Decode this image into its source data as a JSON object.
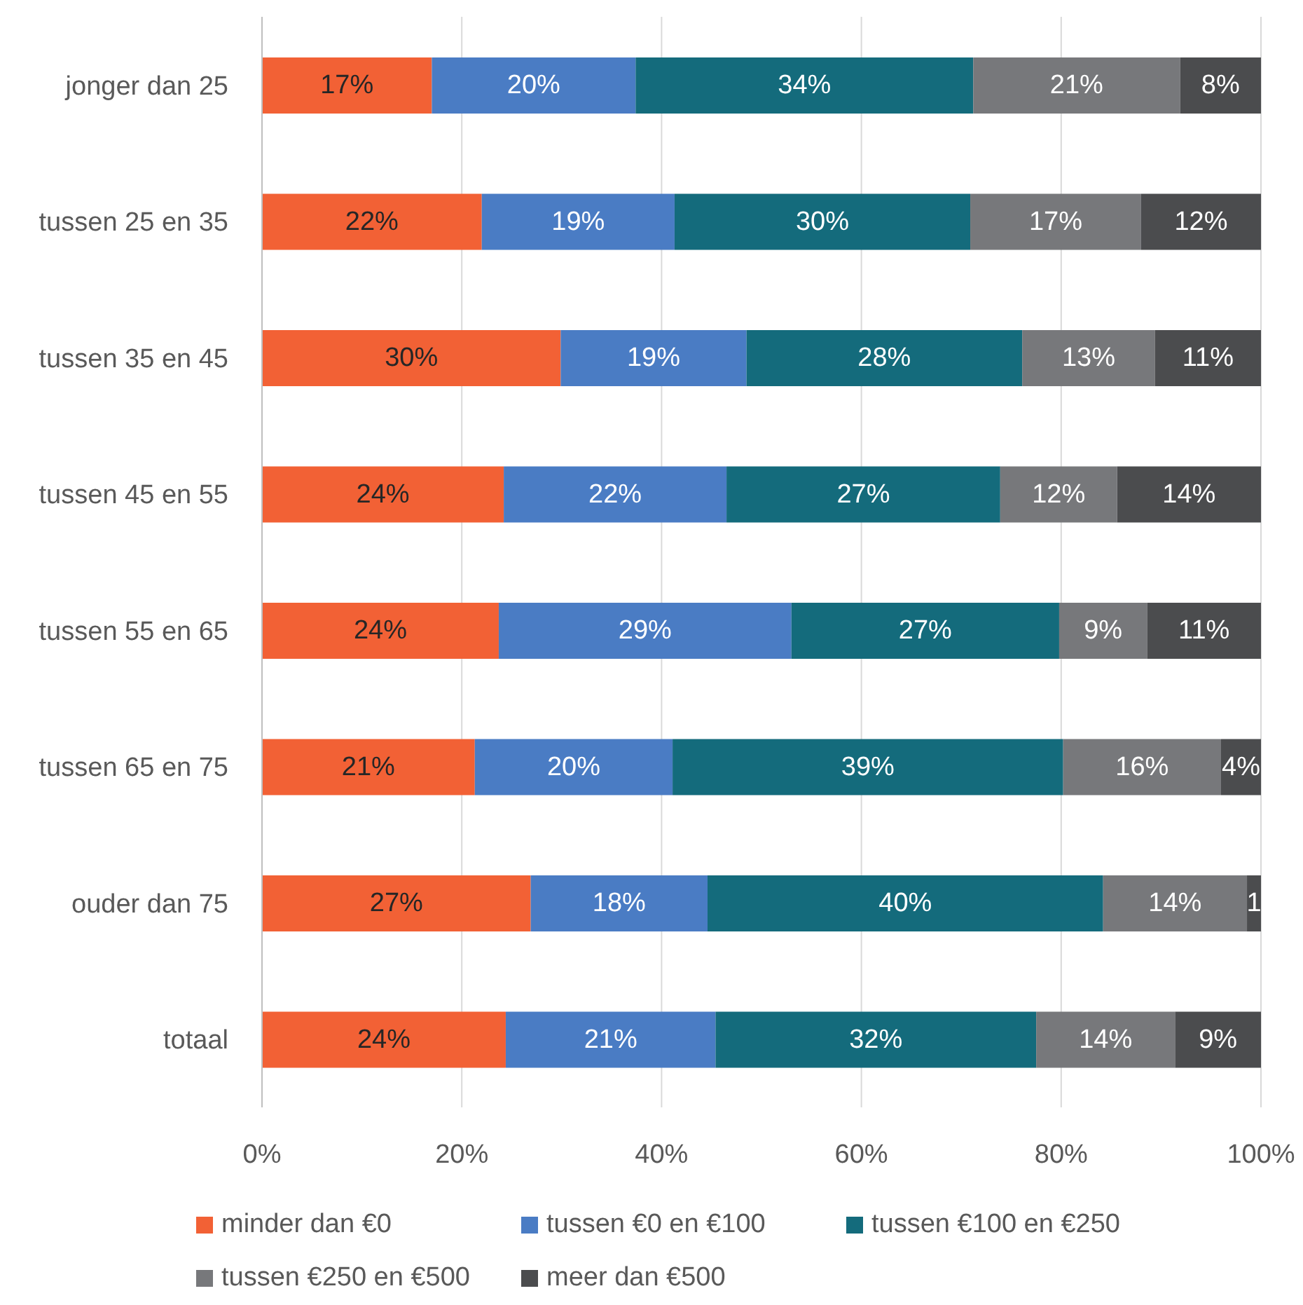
{
  "chart_data": {
    "type": "bar",
    "orientation": "horizontal",
    "stacked": true,
    "categories": [
      "jonger dan 25",
      "tussen 25 en 35",
      "tussen 35 en 45",
      "tussen 45 en 55",
      "tussen 55 en 65",
      "tussen 65 en 75",
      "ouder dan 75",
      "totaal"
    ],
    "series": [
      {
        "name": "minder dan €0",
        "color": "#f26135",
        "values": [
          17.0,
          22.0,
          29.9,
          24.2,
          23.7,
          21.3,
          26.9,
          24.4
        ],
        "value_labels": [
          "17%",
          "22%",
          "30%",
          "24%",
          "24%",
          "21%",
          "27%",
          "24%"
        ]
      },
      {
        "name": "tussen €0 en €100",
        "color": "#4a7cc4",
        "values": [
          20.4,
          19.3,
          18.6,
          22.3,
          29.3,
          19.8,
          17.7,
          21.0
        ],
        "value_labels": [
          "20%",
          "19%",
          "19%",
          "22%",
          "29%",
          "20%",
          "18%",
          "21%"
        ]
      },
      {
        "name": "tussen €100 en €250",
        "color": "#146b7c",
        "values": [
          33.8,
          29.6,
          27.6,
          27.4,
          26.8,
          39.1,
          39.6,
          32.1
        ],
        "value_labels": [
          "34%",
          "30%",
          "28%",
          "27%",
          "27%",
          "39%",
          "40%",
          "32%"
        ]
      },
      {
        "name": "tussen €250 en €500",
        "color": "#77787b",
        "values": [
          20.7,
          17.1,
          13.3,
          11.7,
          8.8,
          15.8,
          14.4,
          13.9
        ],
        "value_labels": [
          "21%",
          "17%",
          "13%",
          "12%",
          "9%",
          "16%",
          "14%",
          "14%"
        ]
      },
      {
        "name": "meer dan €500",
        "color": "#4b4c4e",
        "values": [
          8.1,
          12.0,
          10.6,
          14.4,
          11.4,
          4.0,
          1.4,
          8.6
        ],
        "value_labels": [
          "8%",
          "12%",
          "11%",
          "14%",
          "11%",
          "4%",
          "1",
          "9%"
        ]
      }
    ],
    "xlim": [
      0,
      100
    ],
    "xticks": [
      {
        "value": 0,
        "label": "0%"
      },
      {
        "value": 20,
        "label": "20%"
      },
      {
        "value": 40,
        "label": "40%"
      },
      {
        "value": 60,
        "label": "60%"
      },
      {
        "value": 80,
        "label": "80%"
      },
      {
        "value": 100,
        "label": "100%"
      }
    ],
    "grid": "x",
    "legend": "bottom"
  }
}
